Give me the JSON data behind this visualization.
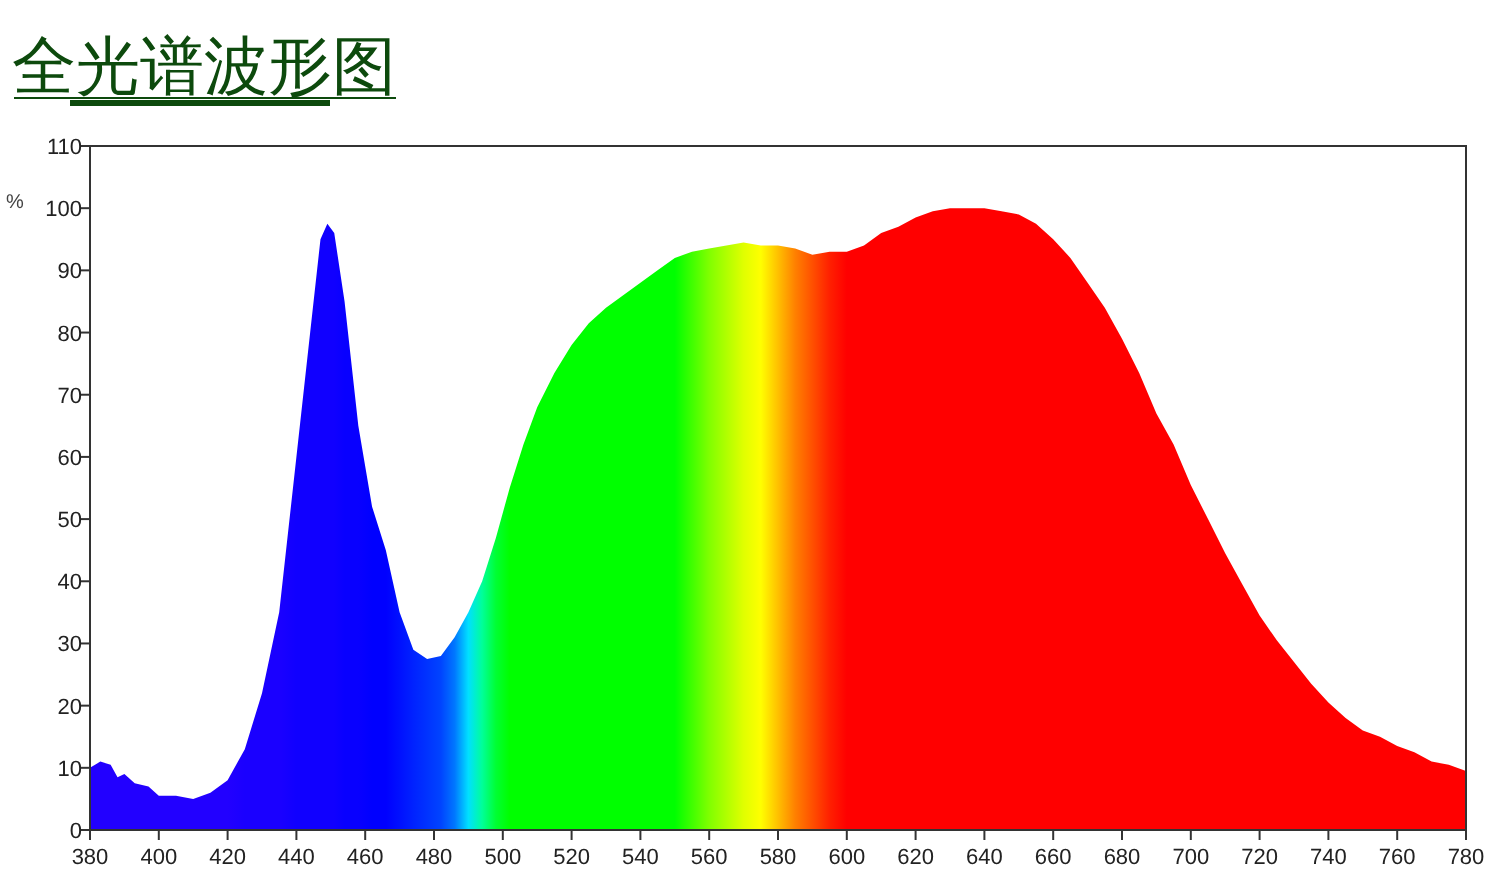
{
  "chart_data": {
    "type": "area",
    "title": "全光谱波形图",
    "ylabel": "%",
    "x": [
      380,
      383,
      386,
      388,
      390,
      393,
      397,
      400,
      405,
      410,
      415,
      420,
      425,
      430,
      435,
      440,
      444,
      447,
      449,
      451,
      454,
      458,
      462,
      466,
      470,
      474,
      478,
      482,
      486,
      490,
      494,
      498,
      502,
      506,
      510,
      515,
      520,
      525,
      530,
      535,
      540,
      545,
      550,
      555,
      560,
      565,
      570,
      575,
      580,
      585,
      590,
      595,
      600,
      605,
      610,
      615,
      620,
      625,
      630,
      635,
      640,
      645,
      650,
      655,
      660,
      665,
      670,
      675,
      680,
      685,
      690,
      695,
      700,
      705,
      710,
      715,
      720,
      725,
      730,
      735,
      740,
      745,
      750,
      755,
      760,
      765,
      770,
      775,
      780
    ],
    "series": [
      {
        "values": [
          10,
          11,
          10.5,
          8.5,
          9,
          7.5,
          7,
          5.5,
          5.5,
          5,
          6,
          8,
          13,
          22,
          35,
          60,
          80,
          95,
          97.5,
          96,
          85,
          65,
          52,
          45,
          35,
          29,
          27.5,
          28,
          31,
          35,
          40,
          47,
          55,
          62,
          68,
          73.5,
          78,
          81.5,
          84,
          86,
          88,
          90,
          92,
          93,
          93.5,
          94,
          94.5,
          94,
          94,
          93.5,
          92.5,
          93,
          93,
          94,
          96,
          97,
          98.5,
          99.5,
          100,
          100,
          100,
          99.5,
          99,
          97.5,
          95,
          92,
          88,
          84,
          79,
          73.5,
          67,
          62,
          55.5,
          50,
          44.5,
          39.5,
          34.5,
          30.5,
          27,
          23.5,
          20.5,
          18,
          16,
          15,
          13.5,
          12.5,
          11,
          10.5,
          9.5
        ],
        "colors": [
          "#2200ff",
          "#2200ff",
          "#2200ff",
          "#2200ff",
          "#2200ff",
          "#2200ff",
          "#2200ff",
          "#2200ff",
          "#2200ff",
          "#2200ff",
          "#2200ff",
          "#2200ff",
          "#1a00ff",
          "#1a00ff",
          "#1a00ff",
          "#1000ff",
          "#1000ff",
          "#1000ff",
          "#1000ff",
          "#1000ff",
          "#0800ff",
          "#0800ff",
          "#0000ff",
          "#0000ff",
          "#0010ff",
          "#0022ff",
          "#0033ff",
          "#0044ff",
          "#0077ff",
          "#00e0ff",
          "#00ff99",
          "#00ff33",
          "#00ff00",
          "#00ff00",
          "#00ff00",
          "#00ff00",
          "#00ff00",
          "#00ff00",
          "#00ff00",
          "#00ff00",
          "#00ff00",
          "#00ff00",
          "#00ff00",
          "#40ff00",
          "#80ff00",
          "#b0ff00",
          "#e0ff00",
          "#ffff00",
          "#ffc000",
          "#ff8000",
          "#ff5000",
          "#ff2000",
          "#ff0000",
          "#ff0000",
          "#ff0000",
          "#ff0000",
          "#ff0000",
          "#ff0000",
          "#ff0000",
          "#ff0000",
          "#ff0000",
          "#ff0000",
          "#ff0000",
          "#ff0000",
          "#ff0000",
          "#ff0000",
          "#ff0000",
          "#ff0000",
          "#ff0000",
          "#ff0000",
          "#ff0000",
          "#ff0000",
          "#ff0000",
          "#ff0000",
          "#ff0000",
          "#ff0000",
          "#ff0000",
          "#ff0000",
          "#ff0000",
          "#ff0000",
          "#ff0000",
          "#ff0000",
          "#ff0000",
          "#ff0000",
          "#ff0000",
          "#ff0000",
          "#ff0000",
          "#ff0000",
          "#ff0000"
        ]
      }
    ],
    "xlim": [
      380,
      780
    ],
    "xticks": [
      380,
      400,
      420,
      440,
      460,
      480,
      500,
      520,
      540,
      560,
      580,
      600,
      620,
      640,
      660,
      680,
      700,
      720,
      740,
      760,
      780
    ],
    "ylim": [
      0,
      110
    ],
    "yticks": [
      0,
      10,
      20,
      30,
      40,
      50,
      60,
      70,
      80,
      90,
      100,
      110
    ],
    "grid": false
  }
}
